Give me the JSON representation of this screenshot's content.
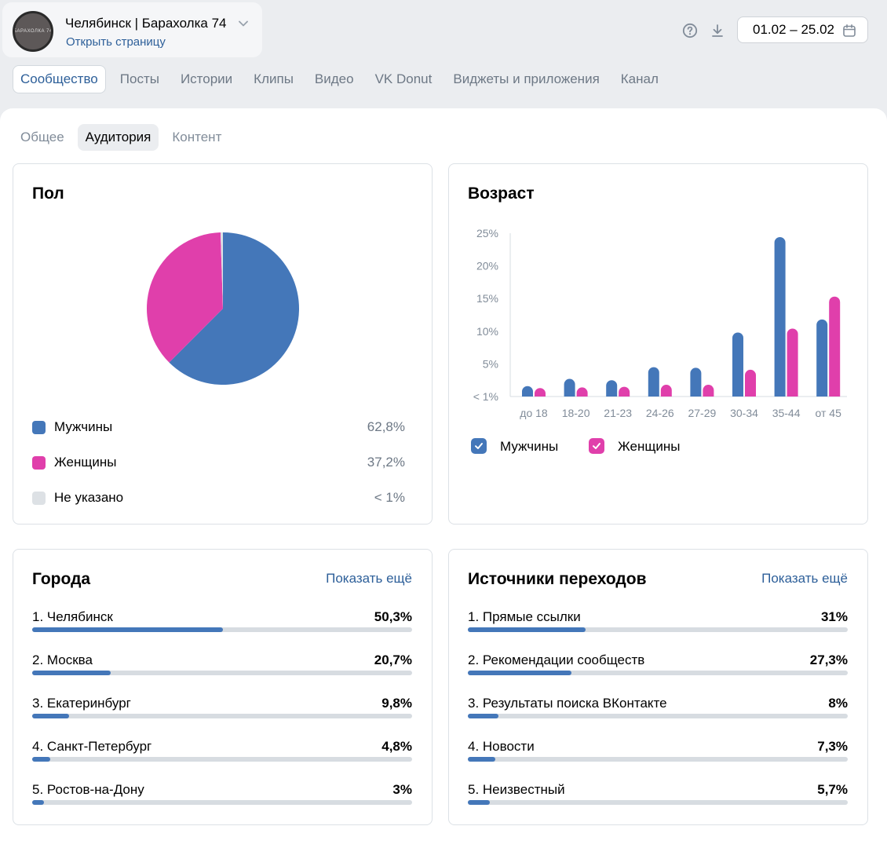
{
  "group": {
    "name": "Челябинск | Барахолка 74",
    "open_link": "Открыть страницу",
    "avatar_text": "БАРАХОЛКА 74"
  },
  "header": {
    "date_range": "01.02 – 25.02"
  },
  "tabs": [
    {
      "label": "Сообщество",
      "active": true
    },
    {
      "label": "Посты"
    },
    {
      "label": "Истории"
    },
    {
      "label": "Клипы"
    },
    {
      "label": "Видео"
    },
    {
      "label": "VK Donut"
    },
    {
      "label": "Виджеты и приложения"
    },
    {
      "label": "Канал"
    }
  ],
  "subtabs": [
    {
      "label": "Общее"
    },
    {
      "label": "Аудитория",
      "active": true
    },
    {
      "label": "Контент"
    }
  ],
  "gender": {
    "title": "Пол",
    "items": [
      {
        "label": "Мужчины",
        "value": "62,8%",
        "color": "#4477b9"
      },
      {
        "label": "Женщины",
        "value": "37,2%",
        "color": "#e03fab"
      },
      {
        "label": "Не указано",
        "value": "< 1%",
        "color": "#dde1e5"
      }
    ]
  },
  "age": {
    "title": "Возраст",
    "legend": {
      "male": "Мужчины",
      "female": "Женщины"
    }
  },
  "chart_data": [
    {
      "type": "pie",
      "title": "Пол",
      "categories": [
        "Мужчины",
        "Женщины",
        "Не указано"
      ],
      "values": [
        62.8,
        37.2,
        0.5
      ],
      "colors": [
        "#4477b9",
        "#e03fab",
        "#dde1e5"
      ]
    },
    {
      "type": "bar",
      "title": "Возраст",
      "categories": [
        "до 18",
        "18-20",
        "21-23",
        "24-26",
        "27-29",
        "30-34",
        "35-44",
        "от 45"
      ],
      "y_tick_labels": [
        "< 1%",
        "5%",
        "10%",
        "15%",
        "20%",
        "25%"
      ],
      "ylim": [
        0,
        25
      ],
      "series": [
        {
          "name": "Мужчины",
          "color": "#4477b9",
          "values": [
            1.5,
            2.7,
            2.5,
            4.5,
            4.4,
            9.8,
            24.4,
            11.8
          ]
        },
        {
          "name": "Женщины",
          "color": "#e03fab",
          "values": [
            0.9,
            1.1,
            1.3,
            1.8,
            1.8,
            4.1,
            10.4,
            15.3
          ]
        }
      ]
    }
  ],
  "cities": {
    "title": "Города",
    "show_more": "Показать ещё",
    "items": [
      {
        "name": "1. Челябинск",
        "value": "50,3%",
        "pct": 50.3
      },
      {
        "name": "2. Москва",
        "value": "20,7%",
        "pct": 20.7
      },
      {
        "name": "3. Екатеринбург",
        "value": "9,8%",
        "pct": 9.8
      },
      {
        "name": "4. Санкт-Петербург",
        "value": "4,8%",
        "pct": 4.8
      },
      {
        "name": "5. Ростов-на-Дону",
        "value": "3%",
        "pct": 3
      }
    ]
  },
  "sources": {
    "title": "Источники переходов",
    "show_more": "Показать ещё",
    "items": [
      {
        "name": "1. Прямые ссылки",
        "value": "31%",
        "pct": 31
      },
      {
        "name": "2. Рекомендации сообществ",
        "value": "27,3%",
        "pct": 27.3
      },
      {
        "name": "3. Результаты поиска ВКонтакте",
        "value": "8%",
        "pct": 8
      },
      {
        "name": "4. Новости",
        "value": "7,3%",
        "pct": 7.3
      },
      {
        "name": "5. Неизвестный",
        "value": "5,7%",
        "pct": 5.7
      }
    ]
  }
}
